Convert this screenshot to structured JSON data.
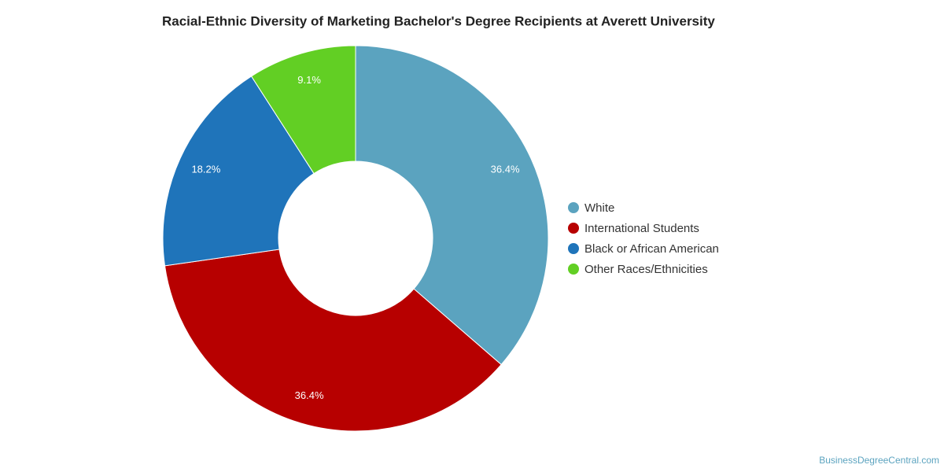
{
  "chart_data": {
    "type": "donut",
    "title": "Racial-Ethnic Diversity of Marketing Bachelor's Degree Recipients at Averett University",
    "categories": [
      "White",
      "International Students",
      "Black or African American",
      "Other Races/Ethnicities"
    ],
    "values": [
      36.4,
      36.4,
      18.2,
      9.1
    ],
    "value_labels": [
      "36.4%",
      "36.4%",
      "18.2%",
      "9.1%"
    ],
    "colors": [
      "#5ba3bf",
      "#b70000",
      "#1f74ba",
      "#62cf24"
    ],
    "legend": "right",
    "source": "BusinessDegreeCentral.com"
  }
}
